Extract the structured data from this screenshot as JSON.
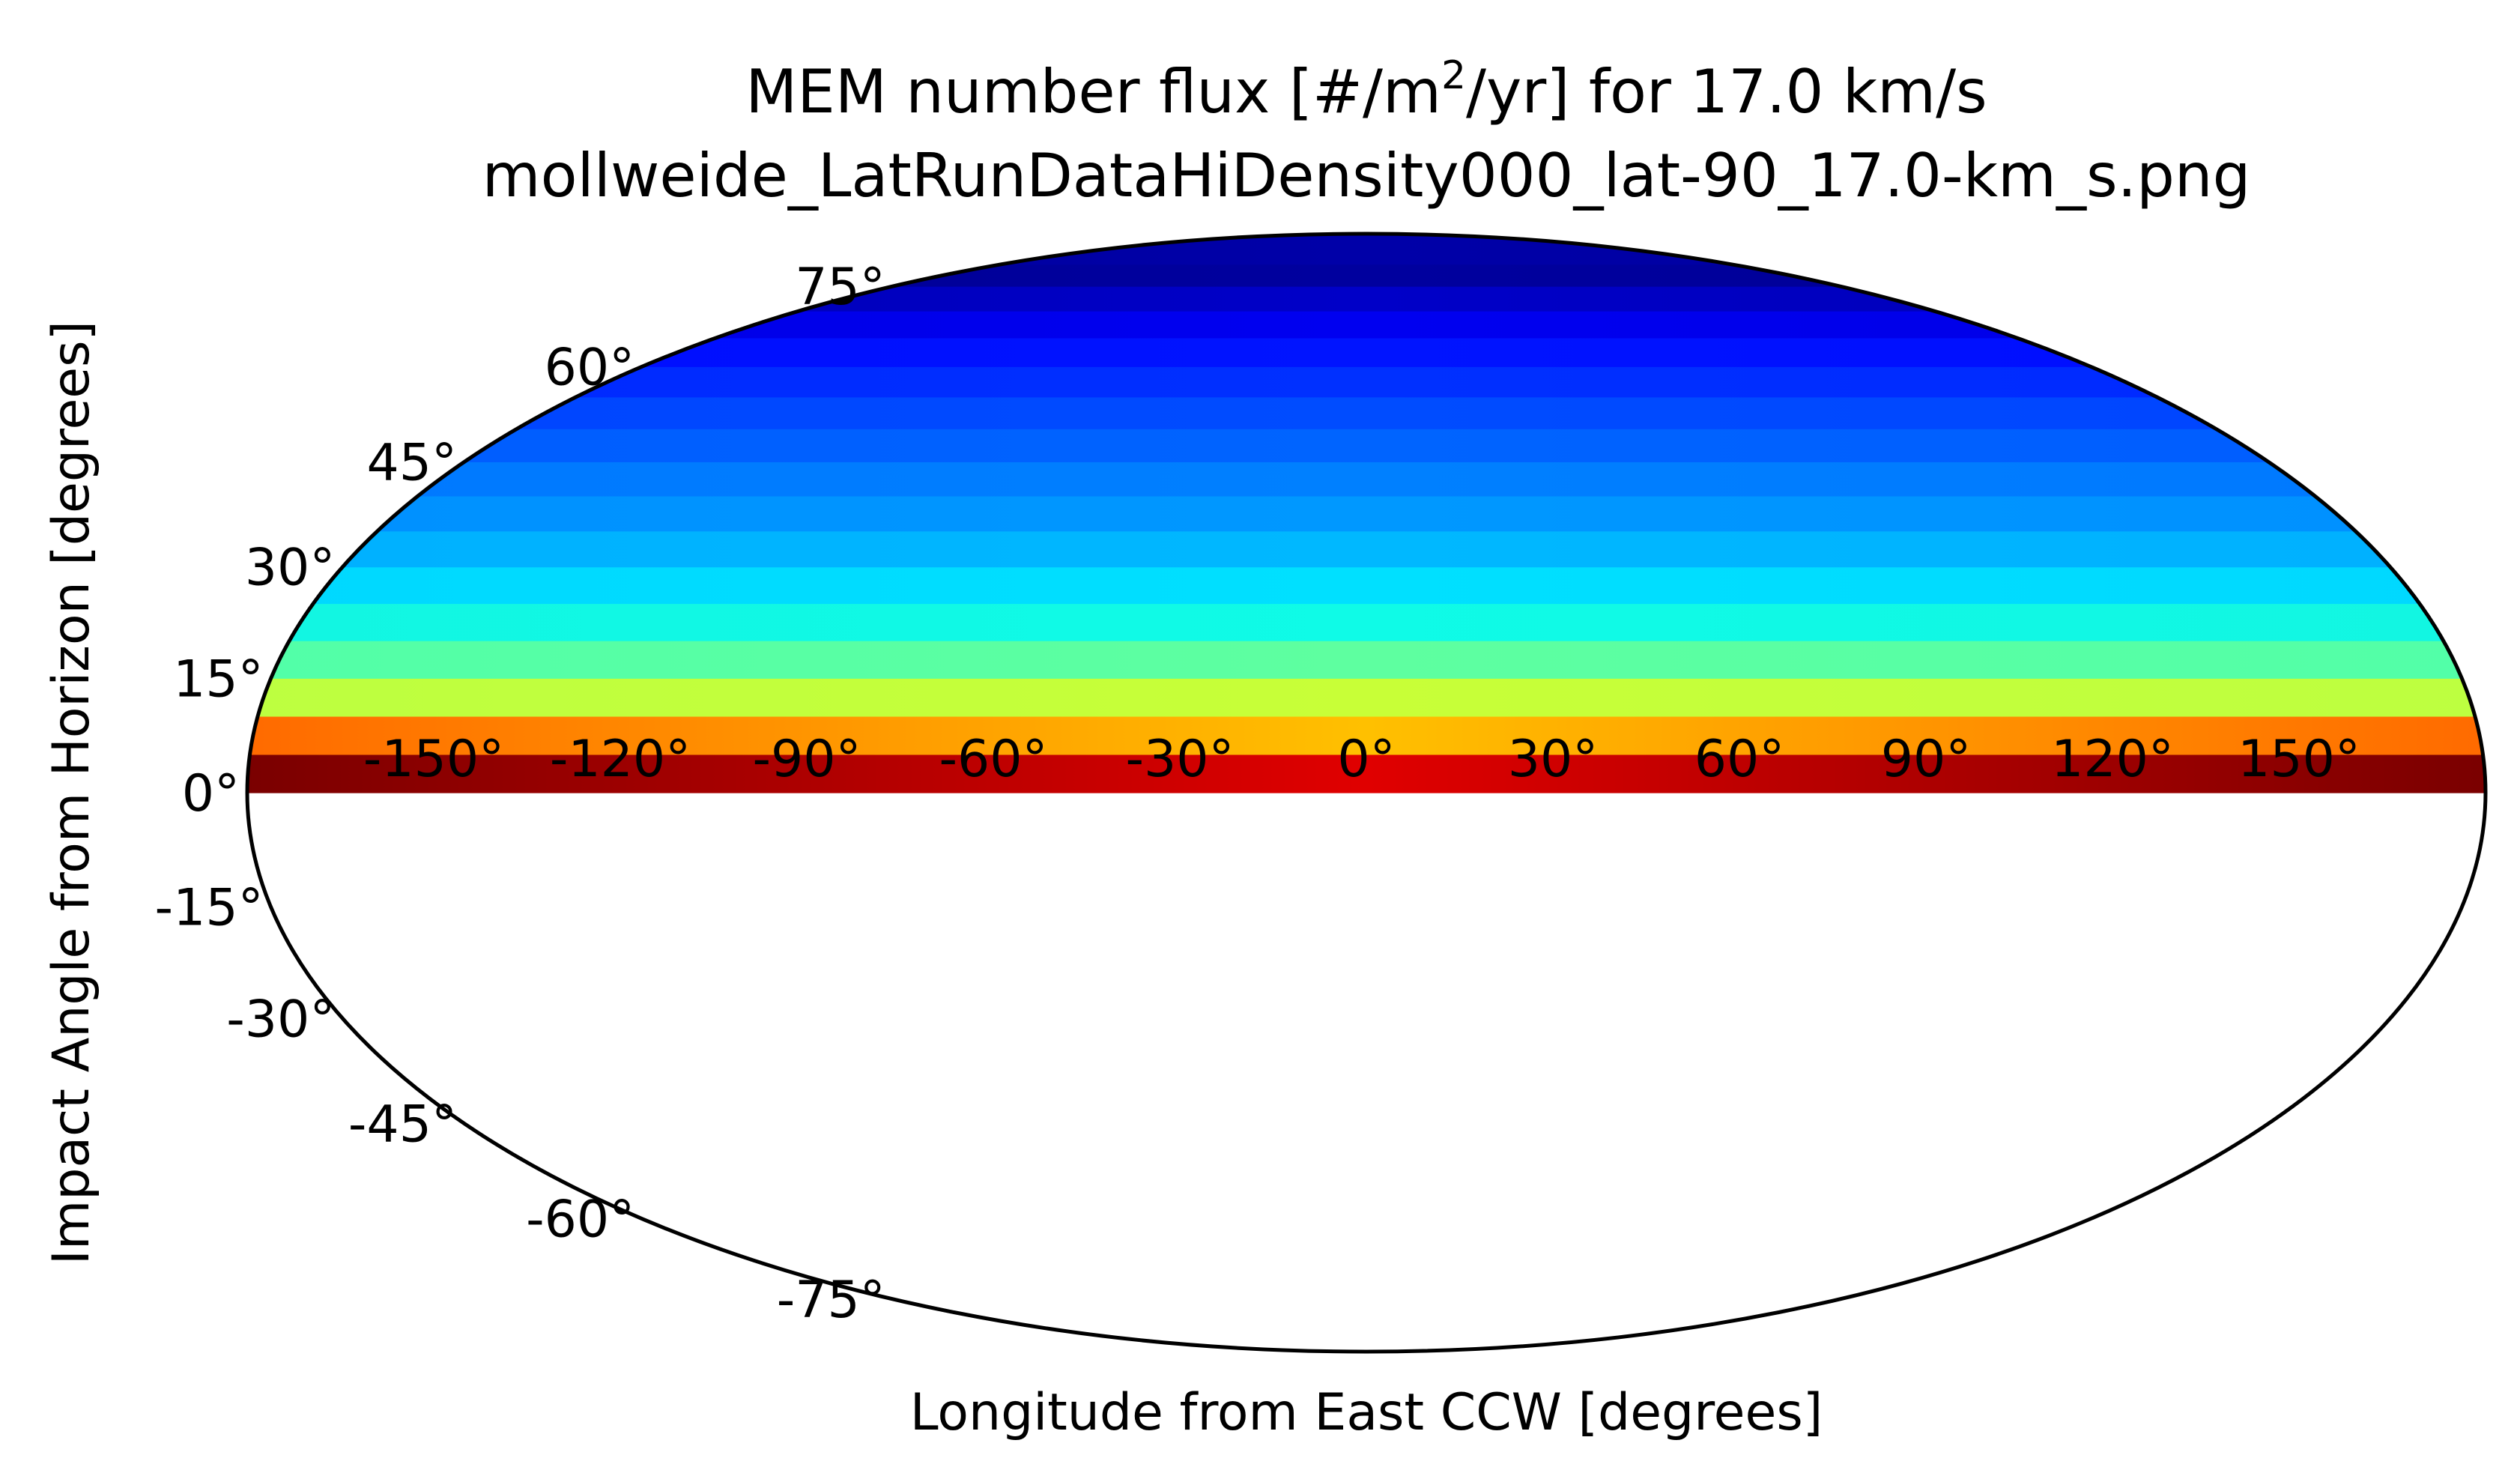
{
  "chart_data": {
    "type": "heatmap",
    "projection": "mollweide",
    "title_prefix": "MEM number flux [#/m",
    "title_superscript": "2",
    "title_suffix": "/yr] for 17.0 km/s",
    "subtitle": "mollweide_LatRunDataHiDensity000_lat-90_17.0-km_s.png",
    "xlabel": "Longitude from East CCW [degrees]",
    "ylabel": "Impact Angle from Horizon [degrees]",
    "xlim": [
      -180,
      180
    ],
    "ylim": [
      -90,
      90
    ],
    "grid": false,
    "colormap": "jet",
    "x_ticks": [
      -150,
      -120,
      -90,
      -60,
      -30,
      0,
      30,
      60,
      90,
      120,
      150
    ],
    "x_tick_labels": [
      "-150°",
      "-120°",
      "-90°",
      "-60°",
      "-30°",
      "0°",
      "30°",
      "60°",
      "90°",
      "120°",
      "150°"
    ],
    "y_ticks": [
      75,
      60,
      45,
      30,
      15,
      0,
      -15,
      -30,
      -45,
      -60,
      -75
    ],
    "y_tick_labels": [
      "75°",
      "60°",
      "45°",
      "30°",
      "15°",
      "0°",
      "-15°",
      "-30°",
      "-45°",
      "-60°",
      "-75°"
    ],
    "bands": [
      {
        "lat_min": 0,
        "lat_max": 5,
        "center_color": "#e00000",
        "edge_color": "#7a0000"
      },
      {
        "lat_min": 5,
        "lat_max": 10,
        "center_color": "#ffc000",
        "edge_color": "#ff6a00"
      },
      {
        "lat_min": 10,
        "lat_max": 15,
        "center_color": "#c8ff37",
        "edge_color": "#bdff40"
      },
      {
        "lat_min": 15,
        "lat_max": 20,
        "center_color": "#5effa0",
        "edge_color": "#52ffa8"
      },
      {
        "lat_min": 20,
        "lat_max": 25,
        "center_color": "#0ffbe7",
        "edge_color": "#12f6e2"
      },
      {
        "lat_min": 25,
        "lat_max": 30,
        "center_color": "#00e0ff",
        "edge_color": "#00d8ff"
      },
      {
        "lat_min": 30,
        "lat_max": 35,
        "center_color": "#00b8ff",
        "edge_color": "#00b0ff"
      },
      {
        "lat_min": 35,
        "lat_max": 40,
        "center_color": "#0098ff",
        "edge_color": "#0090ff"
      },
      {
        "lat_min": 40,
        "lat_max": 45,
        "center_color": "#0080ff",
        "edge_color": "#0078ff"
      },
      {
        "lat_min": 45,
        "lat_max": 50,
        "center_color": "#0064ff",
        "edge_color": "#005cff"
      },
      {
        "lat_min": 50,
        "lat_max": 55,
        "center_color": "#004cff",
        "edge_color": "#0044ff"
      },
      {
        "lat_min": 55,
        "lat_max": 60,
        "center_color": "#0030ff",
        "edge_color": "#0028ff"
      },
      {
        "lat_min": 60,
        "lat_max": 65,
        "center_color": "#0014ff",
        "edge_color": "#000cff"
      },
      {
        "lat_min": 65,
        "lat_max": 70,
        "center_color": "#0000f0",
        "edge_color": "#0000e4"
      },
      {
        "lat_min": 70,
        "lat_max": 75,
        "center_color": "#0000c8",
        "edge_color": "#0000b4"
      },
      {
        "lat_min": 75,
        "lat_max": 80,
        "center_color": "#00009e",
        "edge_color": "#000094"
      },
      {
        "lat_min": 80,
        "lat_max": 90,
        "center_color": "#0000a8",
        "edge_color": "#00009a"
      }
    ]
  }
}
